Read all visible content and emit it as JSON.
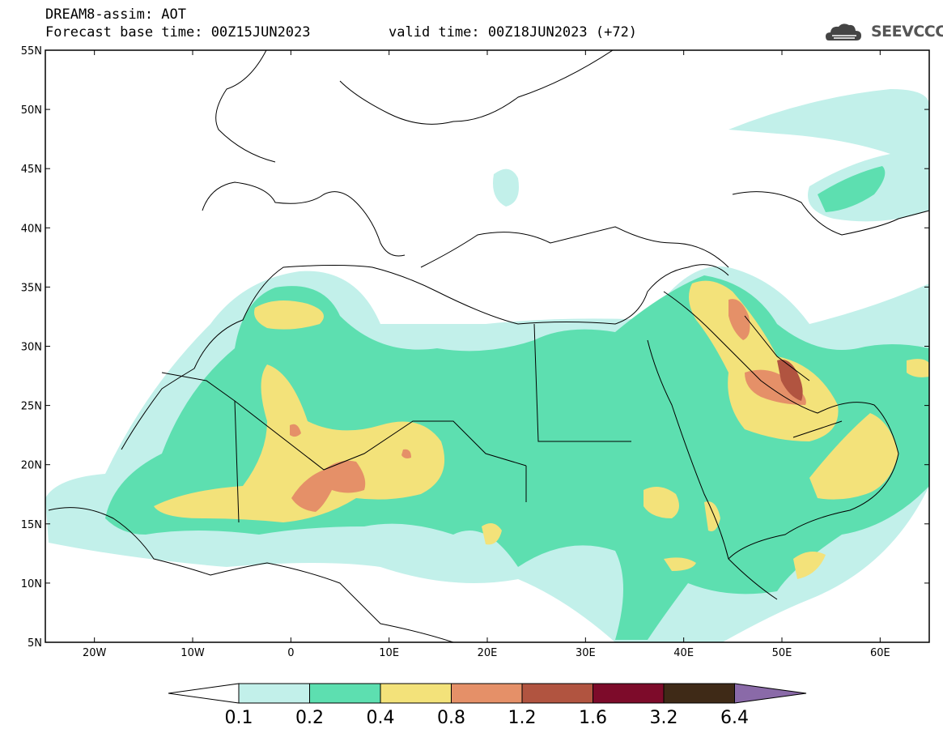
{
  "header": {
    "title": "DREAM8-assim: AOT",
    "forecast_base": "Forecast base time: 00Z15JUN2023",
    "valid_time": "valid time: 00Z18JUN2023 (+72)"
  },
  "logo": {
    "text": "SEEVCCC",
    "icon": "cloud-logo-icon"
  },
  "map": {
    "lon_range": [
      -25,
      65
    ],
    "lat_range": [
      5,
      55
    ],
    "lon_ticks": [
      "20W",
      "10W",
      "0",
      "10E",
      "20E",
      "30E",
      "40E",
      "50E",
      "60E"
    ],
    "lat_ticks": [
      "55N",
      "50N",
      "45N",
      "40N",
      "35N",
      "30N",
      "25N",
      "20N",
      "15N",
      "10N",
      "5N"
    ]
  },
  "colorbar": {
    "labels": [
      "0.1",
      "0.2",
      "0.4",
      "0.8",
      "1.2",
      "1.6",
      "3.2",
      "6.4"
    ],
    "colors": [
      "#c2f0ea",
      "#5ddfb0",
      "#f3e27a",
      "#e59068",
      "#b15440",
      "#7d0b2a",
      "#3f2a17",
      "#8a6aa8"
    ],
    "under_color": "#ffffff",
    "over_color": "#8a6aa8"
  }
}
